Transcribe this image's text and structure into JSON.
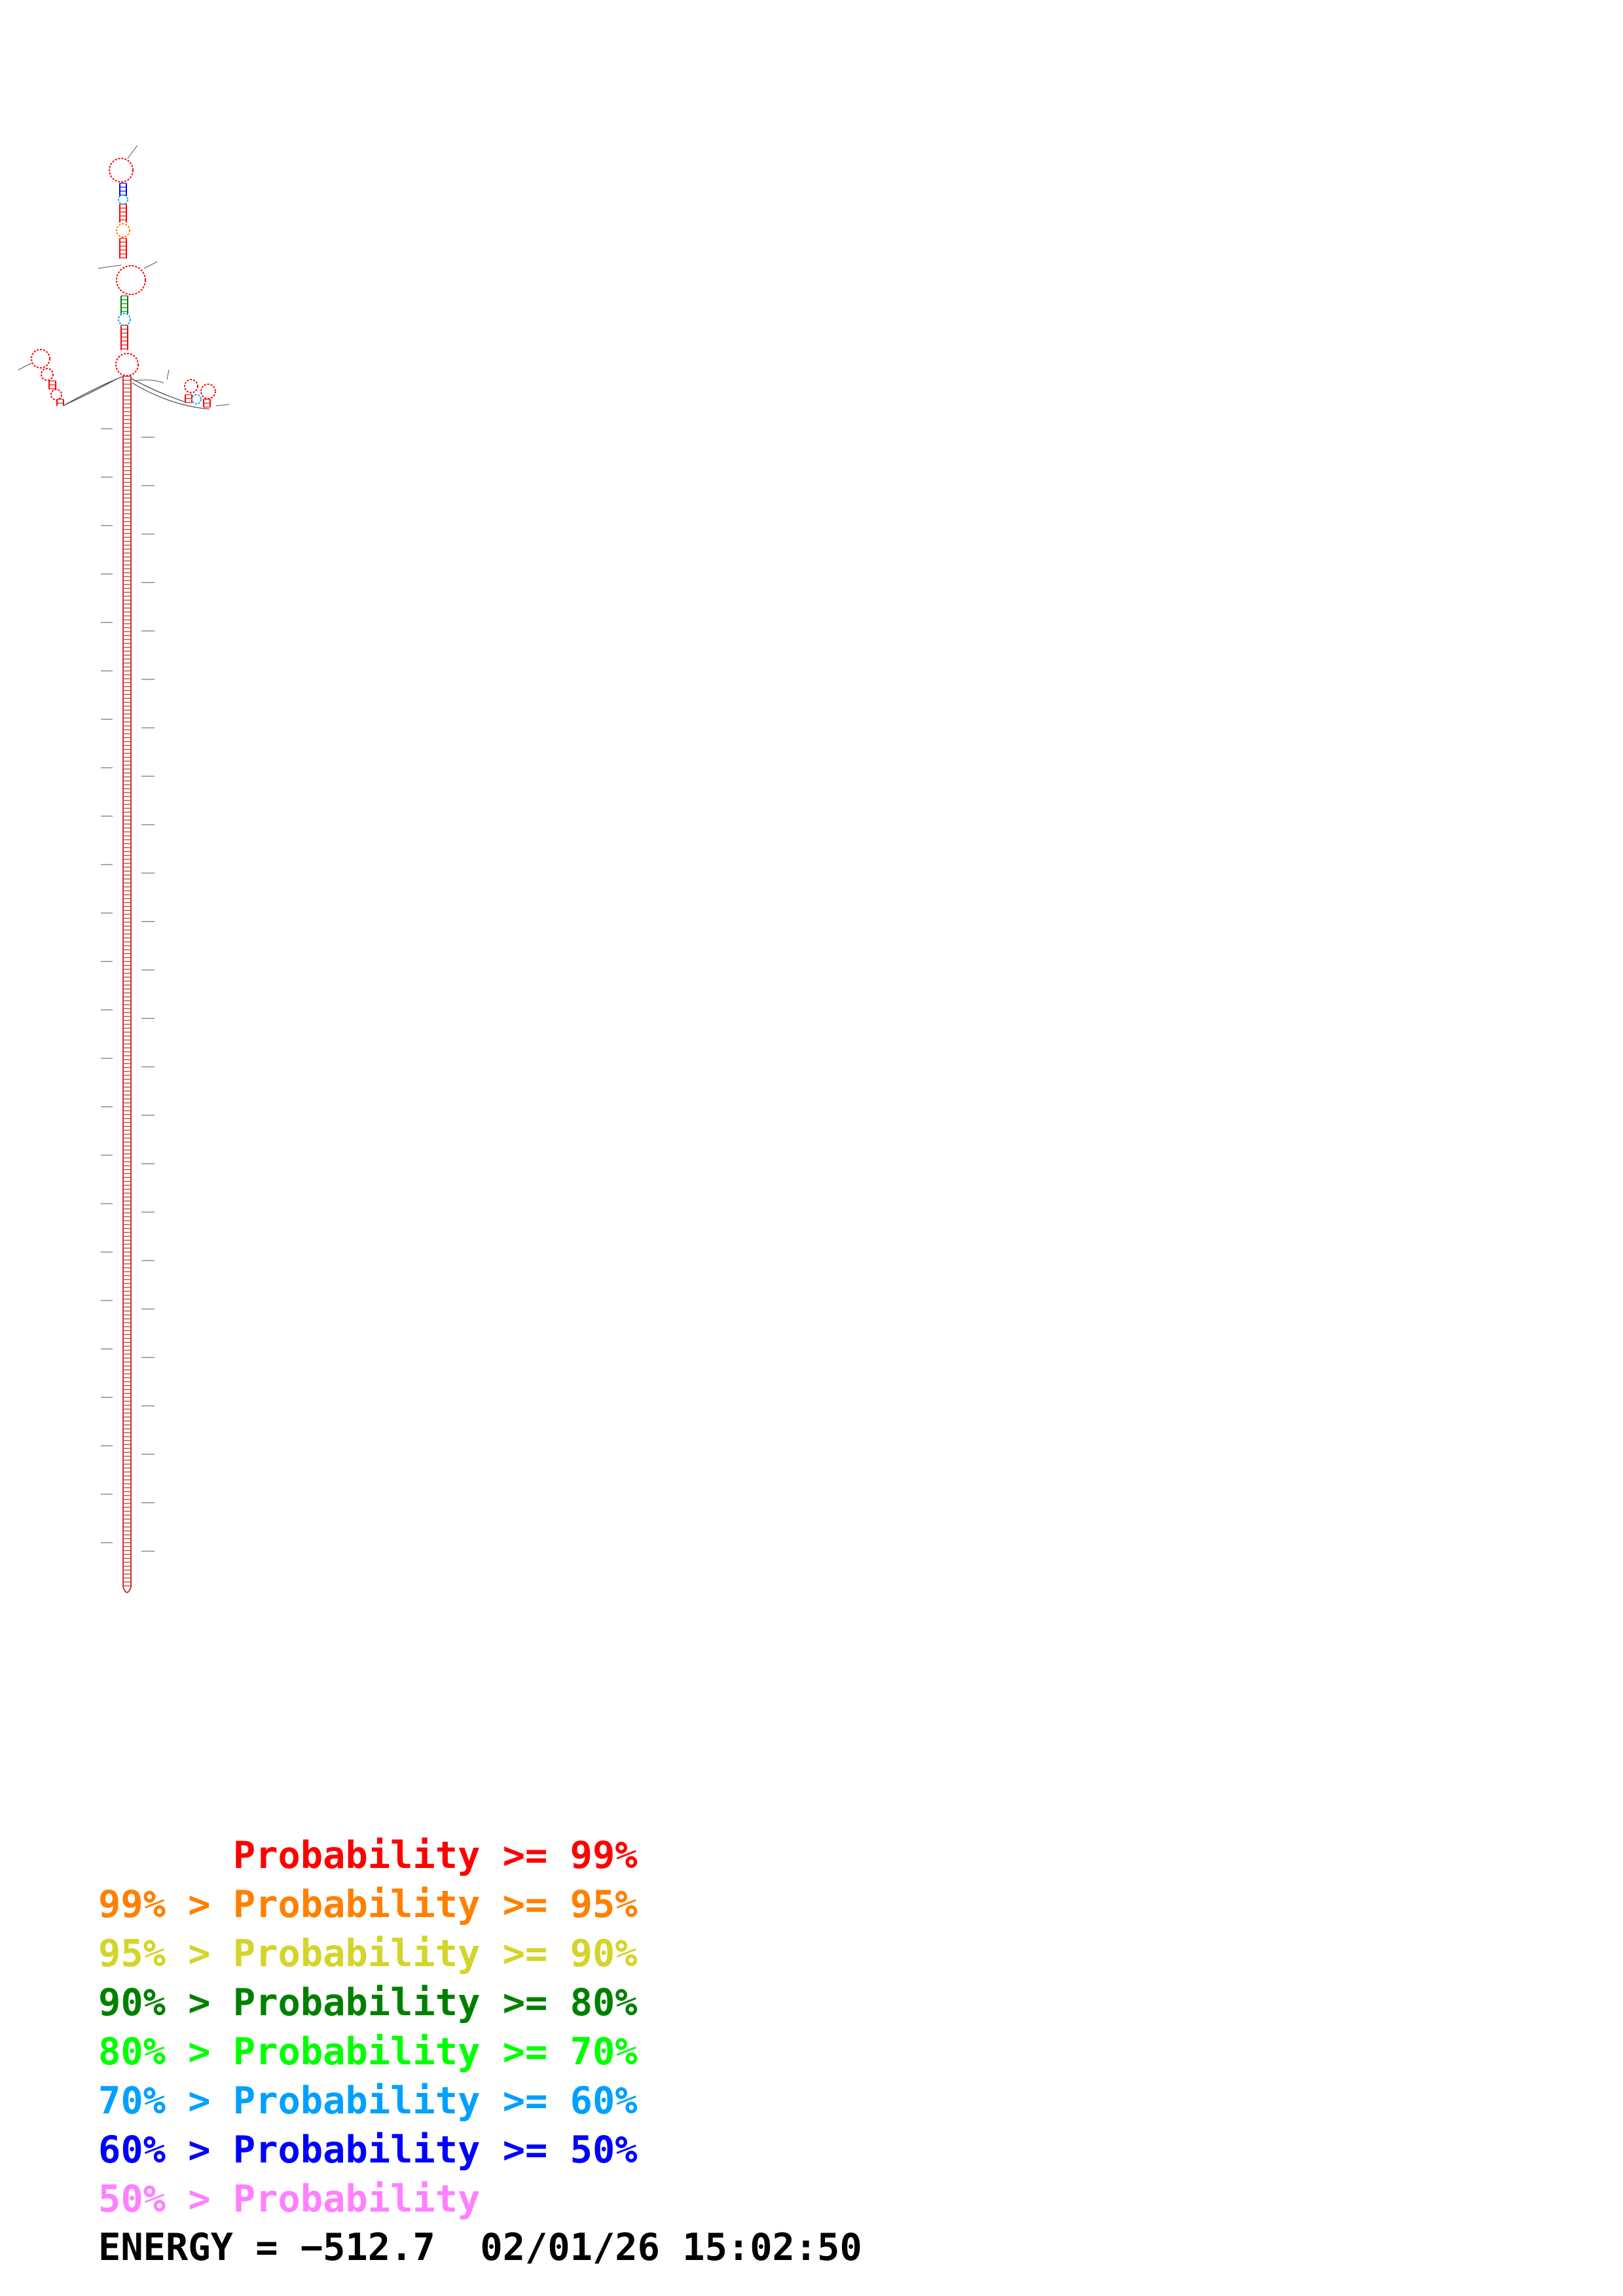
{
  "legend": [
    {
      "text": "      Probability >= 99%",
      "color": "#ff0000"
    },
    {
      "text": "99% > Probability >= 95%",
      "color": "#ff8000"
    },
    {
      "text": "95% > Probability >= 90%",
      "color": "#d4d42a"
    },
    {
      "text": "90% > Probability >= 80%",
      "color": "#008000"
    },
    {
      "text": "80% > Probability >= 70%",
      "color": "#00ff00"
    },
    {
      "text": "70% > Probability >= 60%",
      "color": "#00a0ff"
    },
    {
      "text": "60% > Probability >= 50%",
      "color": "#0000ff"
    },
    {
      "text": "50% > Probability",
      "color": "#ff80ff"
    }
  ],
  "energy": {
    "label": "ENERGY = ",
    "value": "−512.7",
    "datetime": "02/01/26 15:02:50"
  },
  "structure": {
    "stem_color": "#cc3333",
    "backbone_color": "#555555",
    "colors": [
      "#ff0000",
      "#ff8000",
      "#d4d42a",
      "#008000",
      "#00ff00",
      "#00a0ff",
      "#0000ff",
      "#ff80ff"
    ]
  }
}
